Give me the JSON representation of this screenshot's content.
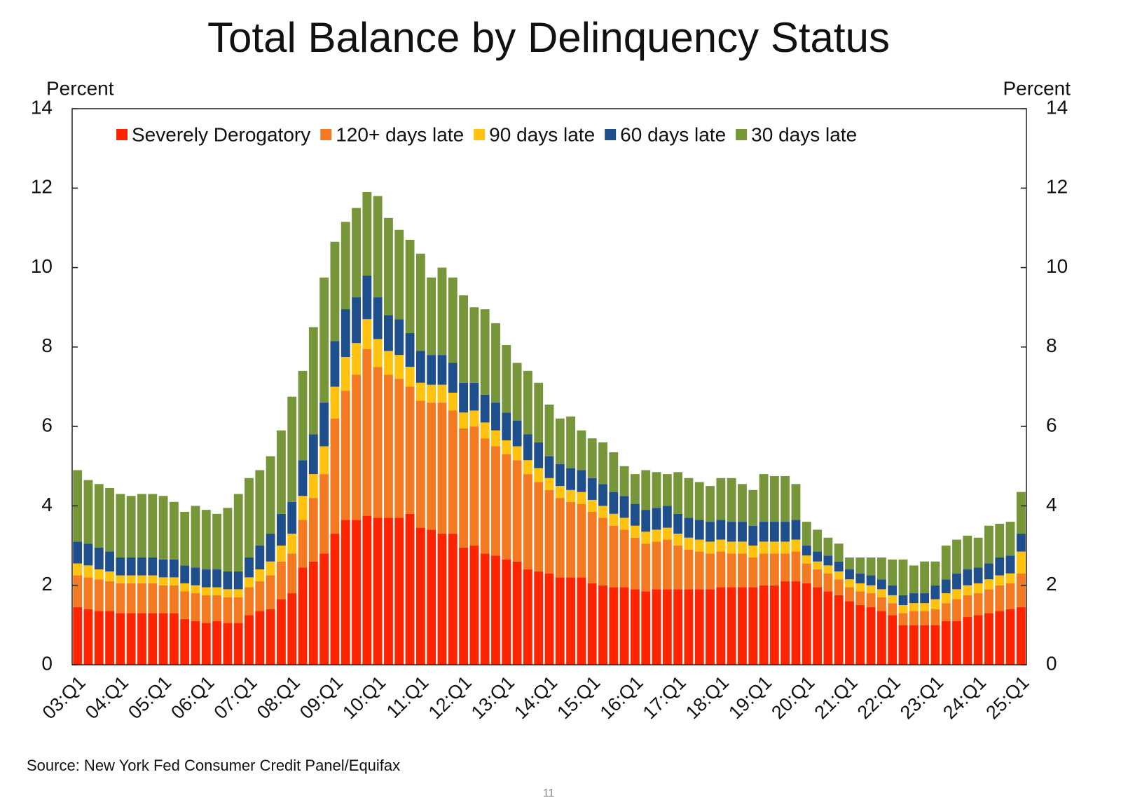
{
  "chart_data": {
    "type": "stacked_bar",
    "title": "Total Balance by Delinquency Status",
    "y_label": "Percent",
    "y2_label": "Percent",
    "source": "Source: New York Fed Consumer Credit Panel/Equifax",
    "page_number": "11",
    "categories": [
      "03:Q1",
      null,
      null,
      null,
      "04:Q1",
      null,
      null,
      null,
      "05:Q1",
      null,
      null,
      null,
      "06:Q1",
      null,
      null,
      null,
      "07:Q1",
      null,
      null,
      null,
      "08:Q1",
      null,
      null,
      null,
      "09:Q1",
      null,
      null,
      null,
      "10:Q1",
      null,
      null,
      null,
      "11:Q1",
      null,
      null,
      null,
      "12:Q1",
      null,
      null,
      null,
      "13:Q1",
      null,
      null,
      null,
      "14:Q1",
      null,
      null,
      null,
      "15:Q1",
      null,
      null,
      null,
      "16:Q1",
      null,
      null,
      null,
      "17:Q1",
      null,
      null,
      null,
      "18:Q1",
      null,
      null,
      null,
      "19:Q1",
      null,
      null,
      null,
      "20:Q1",
      null,
      null,
      null,
      "21:Q1",
      null,
      null,
      null,
      "22:Q1",
      null,
      null,
      null,
      "23:Q1",
      null,
      null,
      null,
      "24:Q1",
      null,
      null,
      null,
      "25:Q1"
    ],
    "series": [
      {
        "name": "Severely Derogatory",
        "color": "#fe2400",
        "values": [
          1.45,
          1.4,
          1.35,
          1.35,
          1.3,
          1.3,
          1.3,
          1.3,
          1.3,
          1.3,
          1.15,
          1.1,
          1.05,
          1.1,
          1.05,
          1.05,
          1.25,
          1.35,
          1.4,
          1.65,
          1.8,
          2.45,
          2.6,
          2.8,
          3.3,
          3.65,
          3.65,
          3.75,
          3.7,
          3.7,
          3.7,
          3.8,
          3.45,
          3.4,
          3.3,
          3.3,
          2.95,
          3.0,
          2.8,
          2.75,
          2.65,
          2.6,
          2.4,
          2.35,
          2.3,
          2.2,
          2.2,
          2.2,
          2.05,
          2.0,
          1.95,
          1.95,
          1.9,
          1.85,
          1.9,
          1.9,
          1.9,
          1.9,
          1.9,
          1.9,
          1.95,
          1.95,
          1.95,
          1.95,
          2.0,
          2.0,
          2.1,
          2.1,
          2.05,
          1.95,
          1.85,
          1.75,
          1.6,
          1.5,
          1.45,
          1.35,
          1.25,
          1.0,
          1.0,
          1.0,
          1.0,
          1.1,
          1.1,
          1.2,
          1.25,
          1.3,
          1.35,
          1.4,
          1.45
        ]
      },
      {
        "name": "120+ days late",
        "color": "#f47a22",
        "values": [
          0.8,
          0.8,
          0.8,
          0.75,
          0.75,
          0.75,
          0.75,
          0.75,
          0.7,
          0.7,
          0.7,
          0.7,
          0.7,
          0.65,
          0.65,
          0.65,
          0.7,
          0.75,
          0.85,
          0.95,
          1.0,
          1.2,
          1.6,
          2.0,
          2.9,
          3.25,
          3.65,
          4.2,
          3.8,
          3.6,
          3.5,
          3.2,
          3.2,
          3.2,
          3.3,
          3.1,
          3.0,
          3.0,
          2.9,
          2.75,
          2.65,
          2.55,
          2.4,
          2.25,
          2.1,
          2.0,
          1.9,
          1.85,
          1.8,
          1.7,
          1.55,
          1.45,
          1.3,
          1.2,
          1.2,
          1.25,
          1.1,
          1.0,
          0.95,
          0.9,
          0.9,
          0.85,
          0.85,
          0.75,
          0.8,
          0.8,
          0.7,
          0.75,
          0.5,
          0.45,
          0.45,
          0.4,
          0.35,
          0.35,
          0.35,
          0.35,
          0.3,
          0.3,
          0.35,
          0.35,
          0.4,
          0.45,
          0.55,
          0.55,
          0.55,
          0.6,
          0.65,
          0.65,
          0.85
        ]
      },
      {
        "name": "90 days late",
        "color": "#ffc20e",
        "values": [
          0.3,
          0.3,
          0.25,
          0.25,
          0.2,
          0.2,
          0.2,
          0.2,
          0.2,
          0.2,
          0.2,
          0.2,
          0.2,
          0.2,
          0.2,
          0.2,
          0.25,
          0.3,
          0.35,
          0.4,
          0.5,
          0.6,
          0.6,
          0.7,
          0.8,
          0.85,
          0.8,
          0.75,
          0.7,
          0.6,
          0.6,
          0.5,
          0.45,
          0.45,
          0.45,
          0.45,
          0.4,
          0.4,
          0.4,
          0.4,
          0.35,
          0.35,
          0.35,
          0.35,
          0.3,
          0.3,
          0.3,
          0.3,
          0.3,
          0.3,
          0.3,
          0.3,
          0.3,
          0.3,
          0.3,
          0.3,
          0.3,
          0.3,
          0.3,
          0.3,
          0.3,
          0.3,
          0.3,
          0.3,
          0.3,
          0.3,
          0.3,
          0.3,
          0.2,
          0.2,
          0.2,
          0.2,
          0.2,
          0.2,
          0.2,
          0.2,
          0.2,
          0.2,
          0.2,
          0.2,
          0.25,
          0.25,
          0.25,
          0.25,
          0.25,
          0.25,
          0.25,
          0.25,
          0.55
        ]
      },
      {
        "name": "60 days late",
        "color": "#1f4e8c",
        "values": [
          0.55,
          0.55,
          0.55,
          0.5,
          0.45,
          0.45,
          0.45,
          0.45,
          0.45,
          0.45,
          0.45,
          0.45,
          0.45,
          0.45,
          0.45,
          0.45,
          0.5,
          0.6,
          0.7,
          0.8,
          0.8,
          0.9,
          1.0,
          1.1,
          1.15,
          1.2,
          1.15,
          1.1,
          1.05,
          0.9,
          0.9,
          0.85,
          0.8,
          0.75,
          0.75,
          0.75,
          0.75,
          0.7,
          0.7,
          0.7,
          0.7,
          0.65,
          0.65,
          0.65,
          0.55,
          0.55,
          0.55,
          0.55,
          0.55,
          0.55,
          0.55,
          0.55,
          0.55,
          0.55,
          0.55,
          0.55,
          0.5,
          0.5,
          0.5,
          0.5,
          0.5,
          0.5,
          0.5,
          0.5,
          0.5,
          0.5,
          0.5,
          0.5,
          0.25,
          0.25,
          0.25,
          0.25,
          0.25,
          0.25,
          0.25,
          0.25,
          0.25,
          0.25,
          0.25,
          0.25,
          0.35,
          0.35,
          0.4,
          0.4,
          0.4,
          0.4,
          0.45,
          0.45,
          0.45
        ]
      },
      {
        "name": "30 days late",
        "color": "#77963a",
        "values": [
          1.8,
          1.6,
          1.6,
          1.6,
          1.6,
          1.55,
          1.6,
          1.6,
          1.6,
          1.45,
          1.35,
          1.55,
          1.5,
          1.4,
          1.6,
          1.95,
          2.0,
          1.9,
          1.95,
          2.1,
          2.65,
          2.25,
          2.7,
          3.15,
          2.5,
          2.2,
          2.25,
          2.1,
          2.55,
          2.45,
          2.25,
          2.35,
          2.45,
          1.95,
          2.2,
          2.15,
          2.2,
          1.9,
          2.15,
          2.0,
          1.7,
          1.45,
          1.6,
          1.5,
          1.3,
          1.15,
          1.3,
          1.0,
          1.0,
          1.05,
          1.0,
          0.75,
          0.75,
          1.0,
          0.9,
          0.8,
          1.05,
          1.0,
          0.95,
          0.9,
          1.05,
          1.1,
          0.95,
          0.9,
          1.2,
          1.15,
          1.15,
          0.9,
          0.6,
          0.55,
          0.45,
          0.45,
          0.3,
          0.4,
          0.45,
          0.55,
          0.65,
          0.9,
          0.7,
          0.8,
          0.6,
          0.85,
          0.85,
          0.85,
          0.75,
          0.95,
          0.85,
          0.85,
          1.05
        ]
      }
    ],
    "ylim": [
      0,
      14
    ],
    "yticks": [
      0,
      2,
      4,
      6,
      8,
      10,
      12,
      14
    ],
    "y2lim": [
      0,
      14
    ],
    "y2ticks": [
      0,
      2,
      4,
      6,
      8,
      10,
      12,
      14
    ],
    "legend": "top"
  }
}
